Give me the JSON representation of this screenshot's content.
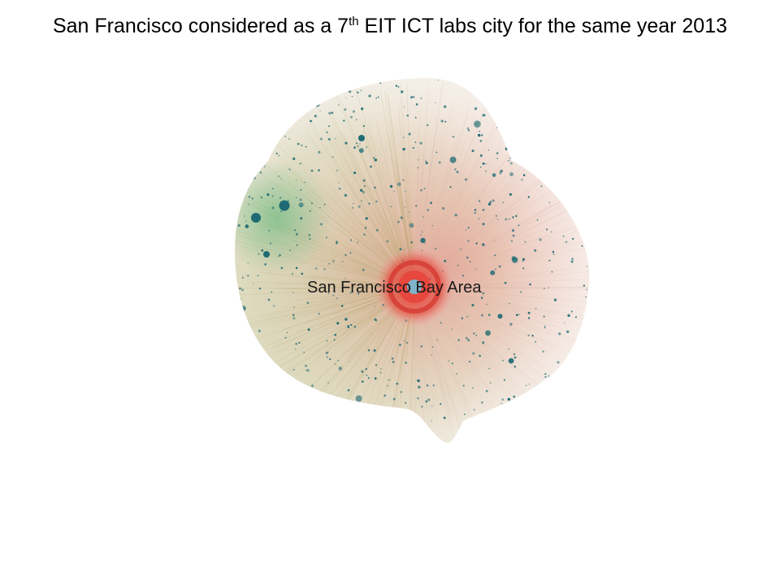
{
  "slide": {
    "title_prefix": "San Francisco considered as a 7",
    "title_sup": "th",
    "title_suffix": " EIT ICT labs city for the same year 2013"
  },
  "network": {
    "hub_label": "San Francisco Bay Area",
    "colors": {
      "hub": "#e8453c",
      "hub_core": "#7fb3c8",
      "left_region": "#a9a05a",
      "right_region": "#f2a8a4",
      "green_cluster": "#3fae6a",
      "node": "#1f6b73",
      "edge": "#d9b3ad"
    }
  }
}
